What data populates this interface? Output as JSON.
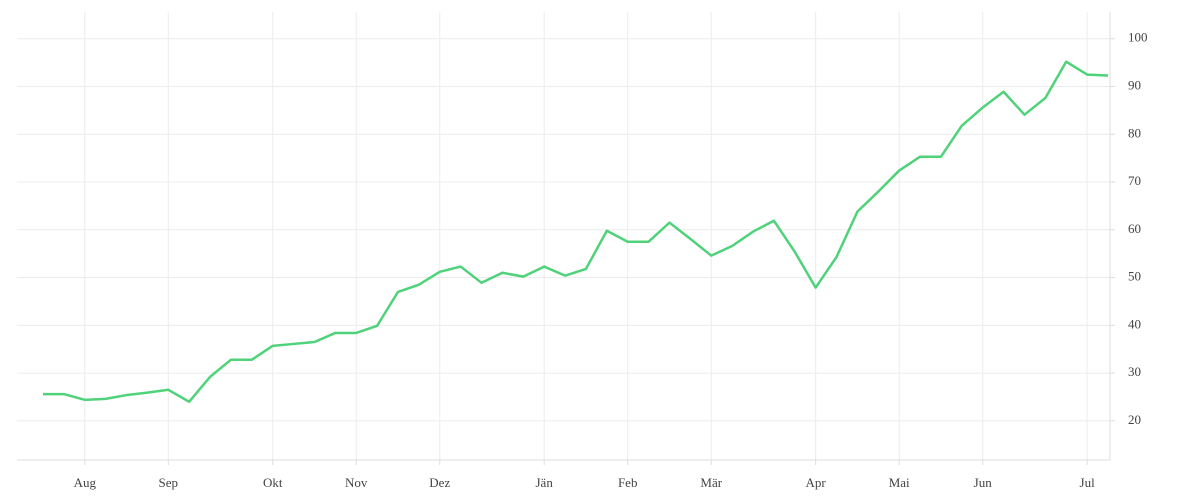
{
  "chart_data": {
    "type": "line",
    "categories": [
      null,
      null,
      "Aug",
      null,
      null,
      null,
      "Sep",
      null,
      null,
      null,
      null,
      "Okt",
      null,
      null,
      null,
      "Nov",
      null,
      null,
      null,
      "Dez",
      null,
      null,
      null,
      null,
      "Jän",
      null,
      null,
      null,
      "Feb",
      null,
      null,
      null,
      "Mär",
      null,
      null,
      null,
      null,
      "Apr",
      null,
      null,
      null,
      "Mai",
      null,
      null,
      null,
      "Jun",
      null,
      null,
      null,
      null,
      "Jul",
      null
    ],
    "values": [
      25.6,
      25.6,
      24.4,
      24.6,
      25.4,
      25.9,
      26.5,
      24.0,
      29.2,
      32.8,
      32.8,
      35.7,
      36.1,
      36.5,
      38.4,
      38.4,
      39.9,
      47.0,
      48.5,
      51.2,
      52.3,
      48.9,
      51.0,
      50.2,
      52.3,
      50.4,
      51.8,
      59.8,
      57.5,
      57.5,
      61.5,
      58.1,
      54.6,
      56.6,
      59.6,
      61.9,
      55.4,
      47.9,
      54.3,
      63.8,
      68.0,
      72.4,
      75.3,
      75.3,
      81.8,
      85.6,
      88.9,
      84.1,
      87.6,
      95.2,
      92.5,
      92.3
    ],
    "color": "#4fd27a",
    "ylim": [
      11.8,
      105.6
    ],
    "yticks": [
      20,
      30,
      40,
      50,
      60,
      70,
      80,
      90,
      100
    ],
    "grid": true
  }
}
